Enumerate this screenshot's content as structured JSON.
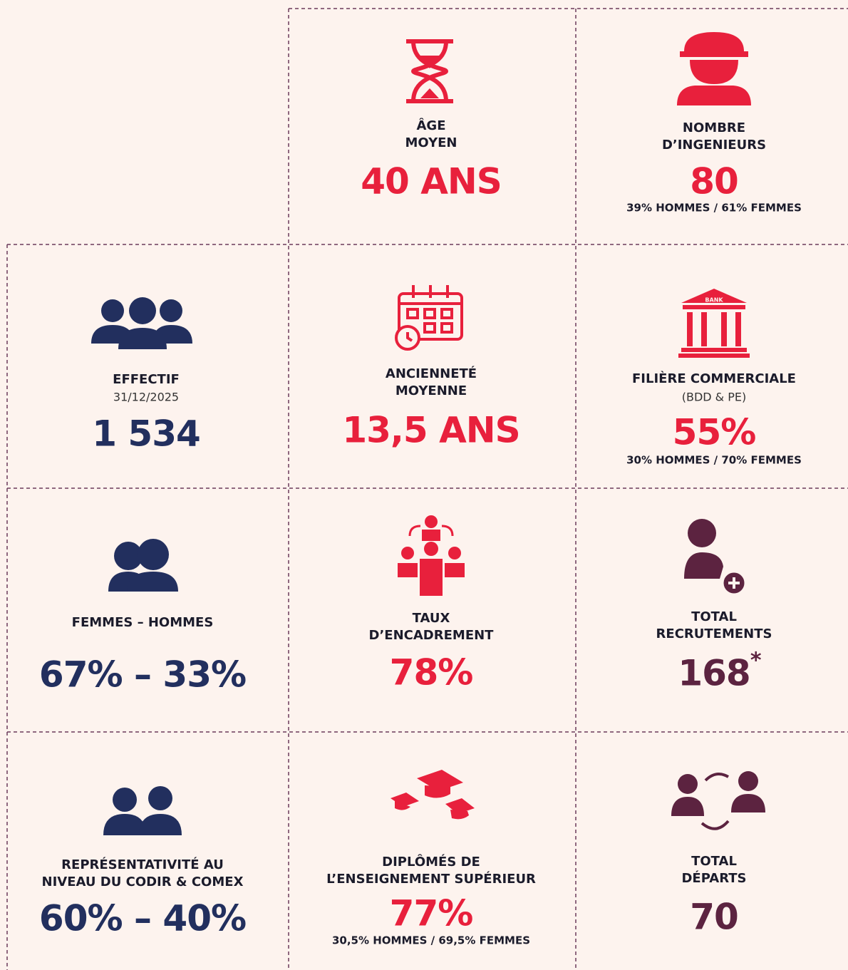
{
  "cells": [
    {
      "label": [
        "ÂGE",
        "MOYEN"
      ],
      "value": "40 ANS"
    },
    {
      "label": [
        "NOMBRE",
        "D’INGENIEURS"
      ],
      "value": "80",
      "note": "39% HOMMES / 61% FEMMES"
    },
    {
      "label": [
        "EFFECTIF"
      ],
      "sub": "31/12/2025",
      "value": "1 534"
    },
    {
      "label": [
        "ANCIENNETÉ",
        "MOYENNE"
      ],
      "value": "13,5 ANS"
    },
    {
      "label": [
        "FILIÈRE COMMERCIALE"
      ],
      "sub": "(BDD & PE)",
      "value": "55%",
      "note": "30% HOMMES / 70% FEMMES",
      "icon_text": "BANK"
    },
    {
      "label": [
        "FEMMES – HOMMES"
      ],
      "value": "67% – 33%"
    },
    {
      "label": [
        "TAUX",
        "D’ENCADREMENT"
      ],
      "value": "78%"
    },
    {
      "label": [
        "TOTAL",
        "RECRUTEMENTS"
      ],
      "value": "168",
      "footnote_mark": "*"
    },
    {
      "label": [
        "REPRÉSENTATIVITÉ AU",
        "NIVEAU DU CODIR & COMEX"
      ],
      "value": "60% – 40%"
    },
    {
      "label": [
        "DIPLÔMÉS DE",
        "L’ENSEIGNEMENT SUPÉRIEUR"
      ],
      "value": "77%",
      "note": "30,5% HOMMES / 69,5%  FEMMES"
    },
    {
      "label": [
        "TOTAL",
        "DÉPARTS"
      ],
      "value": "70"
    }
  ]
}
